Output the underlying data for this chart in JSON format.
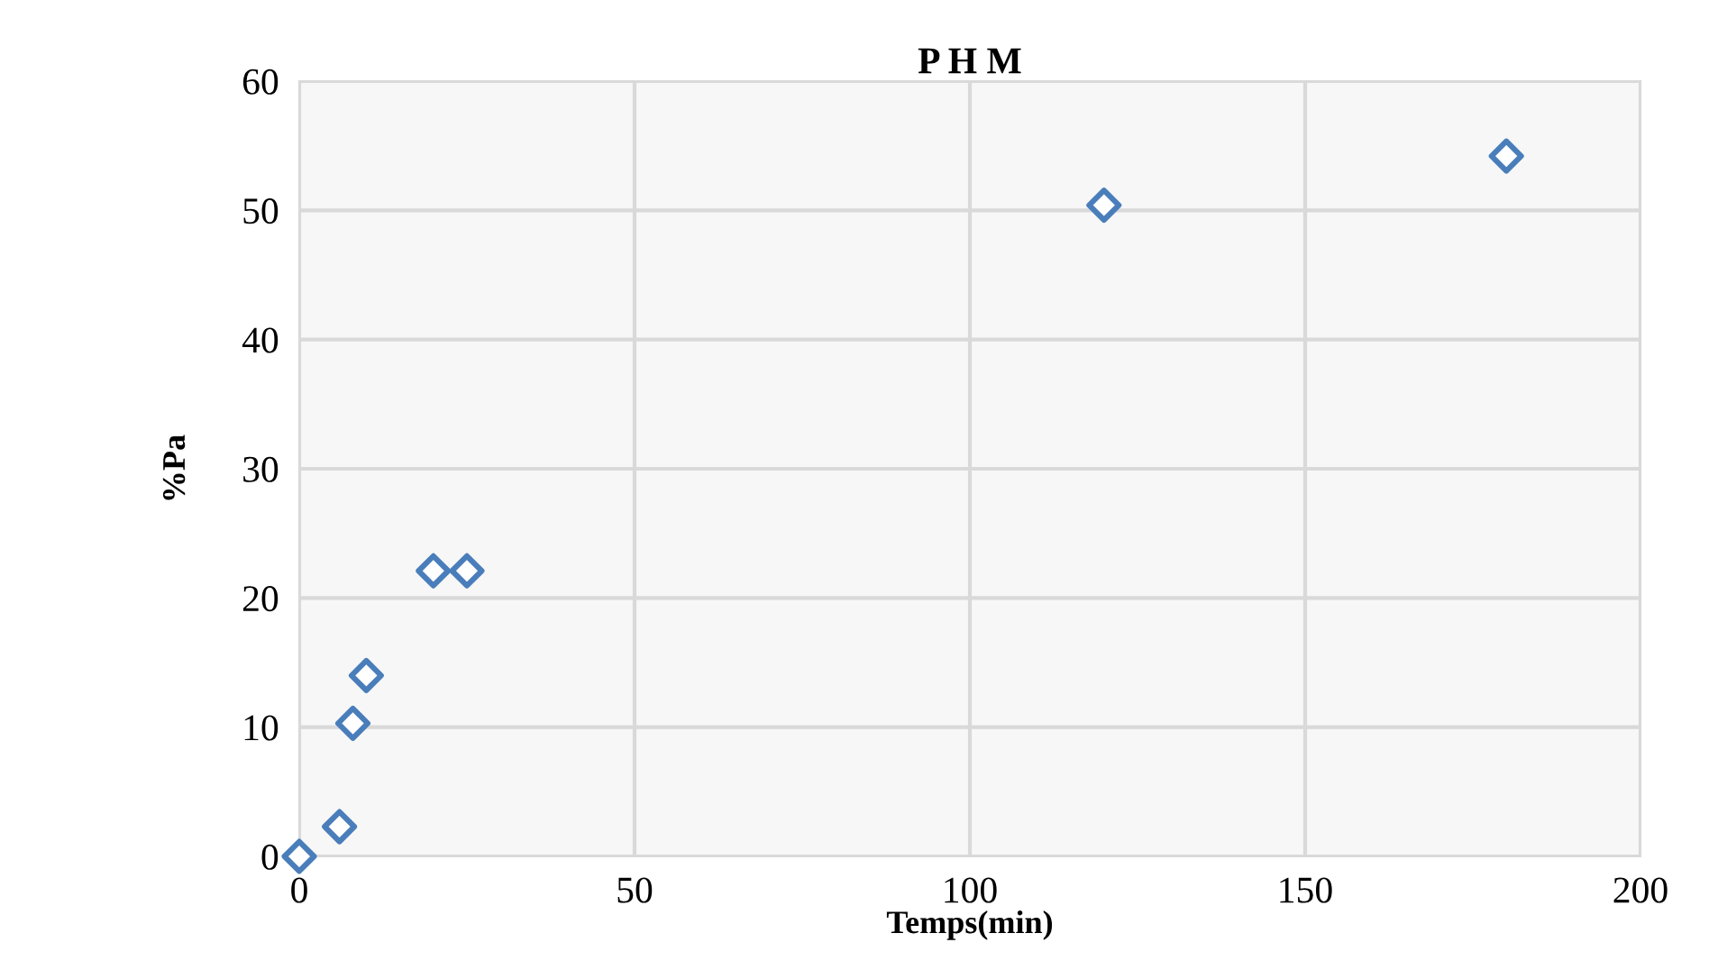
{
  "chart_data": {
    "type": "scatter",
    "title": "P H M",
    "xlabel": "Temps(min)",
    "ylabel": "%Pa",
    "x": [
      0,
      6,
      8,
      10,
      20,
      25,
      120,
      180
    ],
    "series": [
      {
        "color": "#4a7ebb",
        "values": [
          0,
          2.3,
          10.3,
          14,
          22.1,
          22.1,
          50.4,
          54.2
        ]
      }
    ],
    "xlim": [
      0,
      200
    ],
    "xticks": [
      0,
      50,
      100,
      150,
      200
    ],
    "ylim": [
      0,
      60
    ],
    "yticks": [
      0,
      10,
      20,
      30,
      40,
      50,
      60
    ],
    "grid": true,
    "marker": "diamond",
    "legend": false
  }
}
